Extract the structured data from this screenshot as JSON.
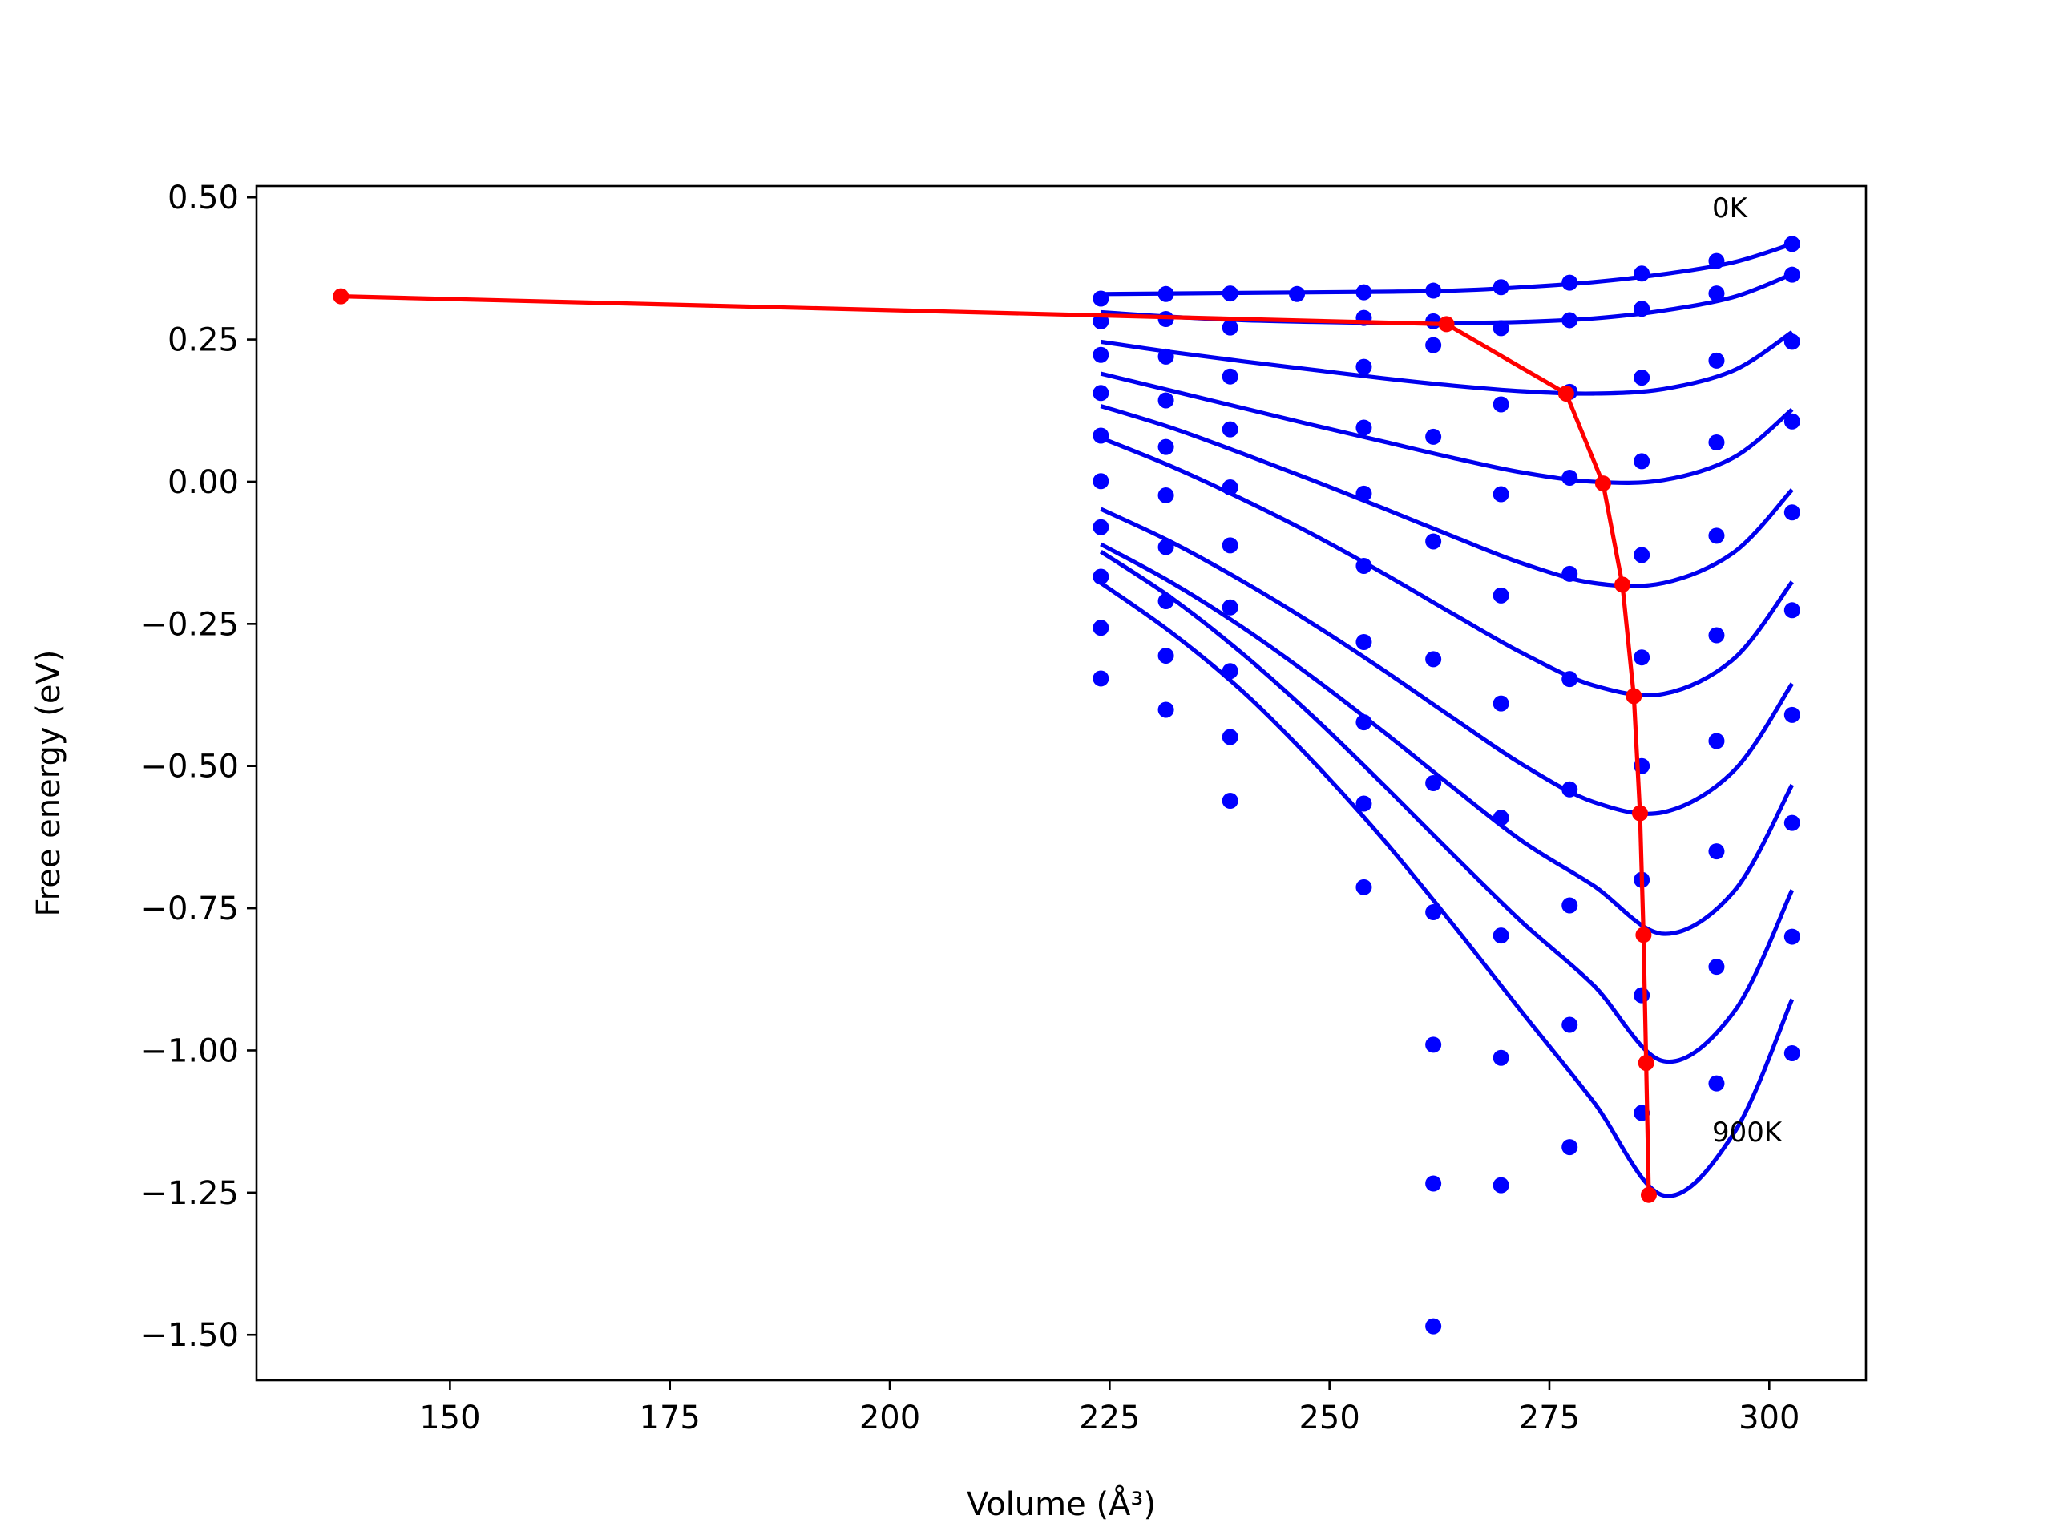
{
  "chart_data": {
    "type": "scatter",
    "xlabel": "Volume (Å³)",
    "ylabel": "Free energy (eV)",
    "xlim": [
      128,
      311
    ],
    "ylim": [
      -1.58,
      0.52
    ],
    "x_ticks": [
      150,
      175,
      200,
      225,
      250,
      275,
      300
    ],
    "x_tick_labels": [
      "150",
      "175",
      "200",
      "225",
      "250",
      "275",
      "300"
    ],
    "y_ticks": [
      0.5,
      0.25,
      0.0,
      -0.25,
      -0.5,
      -0.75,
      -1.0,
      -1.25,
      -1.5
    ],
    "y_tick_labels": [
      "0.50",
      "0.25",
      "0.00",
      "−0.25",
      "−0.50",
      "−0.75",
      "−1.00",
      "−1.25",
      "−1.50"
    ],
    "grid": false,
    "colors": {
      "points": "#0000ff",
      "fits": "#0000ee",
      "equilibrium": "#ff0000"
    },
    "annotations": [
      {
        "text": "0K",
        "x": 293.5,
        "y": 0.465
      },
      {
        "text": "900K",
        "x": 293.5,
        "y": -1.16
      }
    ],
    "points": [
      [
        224,
        0.322
      ],
      [
        231.4,
        0.33
      ],
      [
        238.7,
        0.331
      ],
      [
        246.3,
        0.33
      ],
      [
        253.9,
        0.333
      ],
      [
        261.8,
        0.336
      ],
      [
        269.5,
        0.342
      ],
      [
        277.3,
        0.35
      ],
      [
        285.5,
        0.366
      ],
      [
        294,
        0.388
      ],
      [
        302.6,
        0.418
      ],
      [
        224,
        0.282
      ],
      [
        231.4,
        0.286
      ],
      [
        238.7,
        0.271
      ],
      [
        253.9,
        0.288
      ],
      [
        261.8,
        0.282
      ],
      [
        269.5,
        0.27
      ],
      [
        277.3,
        0.284
      ],
      [
        285.5,
        0.304
      ],
      [
        294,
        0.331
      ],
      [
        302.6,
        0.364
      ],
      [
        224,
        0.223
      ],
      [
        231.4,
        0.22
      ],
      [
        238.7,
        0.185
      ],
      [
        253.9,
        0.202
      ],
      [
        261.8,
        0.24
      ],
      [
        269.5,
        0.136
      ],
      [
        277.3,
        0.158
      ],
      [
        285.5,
        0.183
      ],
      [
        294,
        0.213
      ],
      [
        302.6,
        0.246
      ],
      [
        224,
        0.156
      ],
      [
        231.4,
        0.143
      ],
      [
        238.7,
        0.092
      ],
      [
        253.9,
        0.095
      ],
      [
        261.8,
        0.079
      ],
      [
        269.5,
        -0.022
      ],
      [
        277.3,
        0.007
      ],
      [
        285.5,
        0.036
      ],
      [
        294,
        0.069
      ],
      [
        302.6,
        0.106
      ],
      [
        224,
        0.081
      ],
      [
        231.4,
        0.061
      ],
      [
        238.7,
        -0.01
      ],
      [
        253.9,
        -0.021
      ],
      [
        261.8,
        -0.105
      ],
      [
        269.5,
        -0.2
      ],
      [
        277.3,
        -0.162
      ],
      [
        285.5,
        -0.129
      ],
      [
        294,
        -0.095
      ],
      [
        302.6,
        -0.054
      ],
      [
        224,
        0.001
      ],
      [
        231.4,
        -0.024
      ],
      [
        238.7,
        -0.112
      ],
      [
        253.9,
        -0.148
      ],
      [
        261.8,
        -0.312
      ],
      [
        269.5,
        -0.39
      ],
      [
        277.3,
        -0.347
      ],
      [
        285.5,
        -0.309
      ],
      [
        294,
        -0.27
      ],
      [
        302.6,
        -0.226
      ],
      [
        224,
        -0.08
      ],
      [
        231.4,
        -0.115
      ],
      [
        238.7,
        -0.221
      ],
      [
        253.9,
        -0.282
      ],
      [
        261.8,
        -0.53
      ],
      [
        269.5,
        -0.591
      ],
      [
        277.3,
        -0.541
      ],
      [
        285.5,
        -0.5
      ],
      [
        294,
        -0.456
      ],
      [
        302.6,
        -0.41
      ],
      [
        224,
        -0.167
      ],
      [
        231.4,
        -0.21
      ],
      [
        238.7,
        -0.333
      ],
      [
        253.9,
        -0.423
      ],
      [
        261.8,
        -0.757
      ],
      [
        269.5,
        -0.798
      ],
      [
        277.3,
        -0.745
      ],
      [
        285.5,
        -0.7
      ],
      [
        294,
        -0.65
      ],
      [
        302.6,
        -0.6
      ],
      [
        224,
        -0.257
      ],
      [
        231.4,
        -0.306
      ],
      [
        238.7,
        -0.449
      ],
      [
        253.9,
        -0.566
      ],
      [
        261.8,
        -0.99
      ],
      [
        269.5,
        -1.013
      ],
      [
        277.3,
        -0.955
      ],
      [
        285.5,
        -0.903
      ],
      [
        294,
        -0.853
      ],
      [
        302.6,
        -0.8
      ],
      [
        224,
        -0.346
      ],
      [
        231.4,
        -0.401
      ],
      [
        238.7,
        -0.561
      ],
      [
        253.9,
        -0.713
      ],
      [
        261.8,
        -1.234
      ],
      [
        269.5,
        -1.237
      ],
      [
        277.3,
        -1.17
      ],
      [
        285.5,
        -1.11
      ],
      [
        294,
        -1.058
      ],
      [
        302.6,
        -1.005
      ],
      [
        261.8,
        -1.485
      ]
    ],
    "fit_curves": [
      {
        "temperature": "0K",
        "x": [
          224,
          232,
          240,
          248,
          256,
          264,
          272,
          280,
          288,
          296,
          302.6
        ],
        "y": [
          0.33,
          0.331,
          0.332,
          0.333,
          0.334,
          0.336,
          0.342,
          0.351,
          0.365,
          0.386,
          0.418
        ]
      },
      {
        "x": [
          224,
          232,
          240,
          248,
          256,
          264,
          272,
          280,
          288,
          296,
          302.6
        ],
        "y": [
          0.298,
          0.29,
          0.284,
          0.281,
          0.279,
          0.279,
          0.281,
          0.287,
          0.301,
          0.325,
          0.365
        ]
      },
      {
        "x": [
          224,
          232,
          240,
          248,
          256,
          264,
          272,
          280,
          288,
          296,
          302.6
        ],
        "y": [
          0.246,
          0.228,
          0.212,
          0.197,
          0.182,
          0.169,
          0.159,
          0.155,
          0.163,
          0.196,
          0.263
        ]
      },
      {
        "x": [
          224,
          232,
          240,
          248,
          256,
          264,
          272,
          280,
          288,
          296,
          302.6
        ],
        "y": [
          0.19,
          0.16,
          0.13,
          0.1,
          0.071,
          0.042,
          0.016,
          0.0,
          0.003,
          0.043,
          0.127
        ]
      },
      {
        "x": [
          224,
          232,
          240,
          248,
          256,
          264,
          272,
          280,
          288,
          296,
          302.6
        ],
        "y": [
          0.133,
          0.095,
          0.05,
          0.003,
          -0.046,
          -0.096,
          -0.144,
          -0.178,
          -0.178,
          -0.124,
          -0.014
        ]
      },
      {
        "x": [
          224,
          232,
          240,
          248,
          256,
          264,
          272,
          280,
          288,
          296,
          302.6
        ],
        "y": [
          0.077,
          0.027,
          -0.03,
          -0.092,
          -0.16,
          -0.232,
          -0.302,
          -0.358,
          -0.373,
          -0.311,
          -0.176
        ]
      },
      {
        "x": [
          224,
          232,
          240,
          248,
          256,
          264,
          272,
          280,
          288,
          296,
          302.6
        ],
        "y": [
          -0.048,
          -0.106,
          -0.174,
          -0.249,
          -0.33,
          -0.415,
          -0.498,
          -0.563,
          -0.581,
          -0.508,
          -0.355
        ]
      },
      {
        "x": [
          224,
          232,
          240,
          248,
          256,
          264,
          272,
          280,
          288,
          296,
          302.6
        ],
        "y": [
          -0.11,
          -0.177,
          -0.255,
          -0.343,
          -0.438,
          -0.537,
          -0.633,
          -0.71,
          -0.795,
          -0.72,
          -0.533
        ]
      },
      {
        "x": [
          224,
          232,
          240,
          248,
          256,
          264,
          272,
          280,
          288,
          296,
          302.6
        ],
        "y": [
          -0.123,
          -0.204,
          -0.301,
          -0.411,
          -0.531,
          -0.655,
          -0.776,
          -0.885,
          -1.019,
          -0.932,
          -0.718
        ]
      },
      {
        "temperature": "900K",
        "x": [
          224,
          232,
          240,
          248,
          256,
          264,
          272,
          280,
          288,
          296,
          302.6
        ],
        "y": [
          -0.178,
          -0.265,
          -0.367,
          -0.49,
          -0.627,
          -0.778,
          -0.935,
          -1.09,
          -1.255,
          -1.145,
          -0.91
        ]
      }
    ],
    "equilibrium": {
      "x": [
        137.6,
        263.3,
        276.9,
        281.1,
        283.3,
        284.6,
        285.3,
        285.7,
        286.0,
        286.3
      ],
      "y": [
        0.326,
        0.277,
        0.155,
        -0.003,
        -0.181,
        -0.377,
        -0.583,
        -0.797,
        -1.022,
        -1.254
      ]
    }
  }
}
